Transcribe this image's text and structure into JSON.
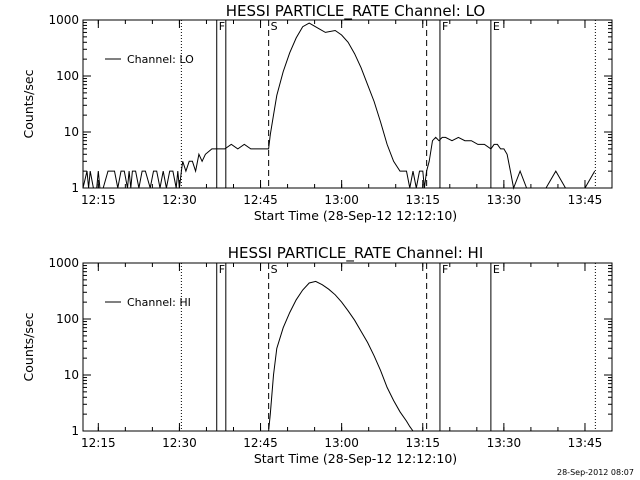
{
  "chart_data": [
    {
      "type": "line",
      "title": "HESSI PARTICLE_RATE Channel: LO",
      "xlabel": "Start Time (28-Sep-12 12:12:10)",
      "ylabel": "Counts/sec",
      "yscale": "log",
      "xlim": [
        12.2028,
        13.8333
      ],
      "ylim": [
        1,
        1000
      ],
      "x_ticks": [
        "12:15",
        "12:30",
        "12:45",
        "13:00",
        "13:15",
        "13:30",
        "13:45"
      ],
      "x_tick_values": [
        12.25,
        12.5,
        12.75,
        13.0,
        13.25,
        13.5,
        13.75
      ],
      "y_ticks": [
        "1",
        "10",
        "100",
        "1000"
      ],
      "y_tick_values": [
        1,
        10,
        100,
        1000
      ],
      "legend": {
        "label": "Channel: LO",
        "position": "top-left"
      },
      "markers": [
        {
          "label": "F",
          "x": 12.615,
          "style": "solid"
        },
        {
          "label": "",
          "x": 12.643,
          "style": "solid"
        },
        {
          "label": "S",
          "x": 12.775,
          "style": "dashed"
        },
        {
          "label": "",
          "x": 13.262,
          "style": "dashed"
        },
        {
          "label": "F",
          "x": 13.303,
          "style": "solid"
        },
        {
          "label": "E",
          "x": 13.46,
          "style": "solid"
        },
        {
          "label": "",
          "x": 12.506,
          "style": "dotted"
        },
        {
          "label": "",
          "x": 13.782,
          "style": "dotted"
        }
      ],
      "series": [
        {
          "name": "Channel: LO",
          "x": [
            12.2028,
            12.215,
            12.22,
            12.225,
            12.235,
            12.245,
            12.25,
            12.255,
            12.265,
            12.28,
            12.3,
            12.31,
            12.32,
            12.33,
            12.34,
            12.345,
            12.35,
            12.355,
            12.365,
            12.375,
            12.385,
            12.395,
            12.41,
            12.42,
            12.43,
            12.44,
            12.45,
            12.46,
            12.47,
            12.48,
            12.49,
            12.495,
            12.5,
            12.506,
            12.51,
            12.52,
            12.53,
            12.54,
            12.55,
            12.56,
            12.57,
            12.58,
            12.6,
            12.62,
            12.64,
            12.66,
            12.68,
            12.7,
            12.72,
            12.74,
            12.76,
            12.775,
            12.78,
            12.79,
            12.8,
            12.82,
            12.84,
            12.86,
            12.88,
            12.9,
            12.93,
            12.95,
            12.98,
            13.0,
            13.02,
            13.04,
            13.06,
            13.08,
            13.1,
            13.12,
            13.14,
            13.16,
            13.18,
            13.2,
            13.21,
            13.22,
            13.23,
            13.24,
            13.25,
            13.255,
            13.262,
            13.27,
            13.28,
            13.29,
            13.3,
            13.31,
            13.32,
            13.34,
            13.36,
            13.38,
            13.4,
            13.42,
            13.44,
            13.46,
            13.47,
            13.48,
            13.49,
            13.5,
            13.51,
            13.52,
            13.53,
            13.55,
            13.57,
            13.6,
            13.63,
            13.66,
            13.69,
            13.7,
            13.72,
            13.75,
            13.78
          ],
          "y": [
            1,
            2,
            1,
            2,
            1,
            1,
            2,
            1,
            1,
            2,
            2,
            1,
            2,
            2,
            1,
            2,
            1,
            2,
            2,
            1,
            2,
            2,
            1,
            2,
            2,
            1,
            2,
            1,
            2,
            2,
            1,
            2,
            1,
            2,
            3,
            2,
            3,
            3,
            2,
            4,
            3,
            4,
            5,
            5,
            5,
            6,
            5,
            6,
            5,
            5,
            5,
            5,
            9,
            20,
            45,
            120,
            260,
            480,
            760,
            880,
            700,
            600,
            650,
            540,
            400,
            250,
            140,
            70,
            35,
            15,
            6,
            3,
            2,
            2,
            1,
            2,
            1,
            2,
            2,
            1,
            2,
            3,
            7,
            8,
            7,
            8,
            8,
            7,
            8,
            7,
            7,
            6,
            6,
            5,
            6,
            6,
            5,
            5,
            4,
            2,
            1,
            2,
            1,
            1,
            1,
            2,
            1,
            1,
            1,
            1,
            2
          ]
        }
      ]
    },
    {
      "type": "line",
      "title": "HESSI PARTICLE_RATE Channel: HI",
      "xlabel": "Start Time (28-Sep-12 12:12:10)",
      "ylabel": "Counts/sec",
      "yscale": "log",
      "xlim": [
        12.2028,
        13.8333
      ],
      "ylim": [
        1,
        1000
      ],
      "x_ticks": [
        "12:15",
        "12:30",
        "12:45",
        "13:00",
        "13:15",
        "13:30",
        "13:45"
      ],
      "x_tick_values": [
        12.25,
        12.5,
        12.75,
        13.0,
        13.25,
        13.5,
        13.75
      ],
      "y_ticks": [
        "1",
        "10",
        "100",
        "1000"
      ],
      "y_tick_values": [
        1,
        10,
        100,
        1000
      ],
      "legend": {
        "label": "Channel: HI",
        "position": "top-left"
      },
      "markers": [
        {
          "label": "F",
          "x": 12.615,
          "style": "solid"
        },
        {
          "label": "",
          "x": 12.643,
          "style": "solid"
        },
        {
          "label": "S",
          "x": 12.775,
          "style": "dashed"
        },
        {
          "label": "",
          "x": 13.262,
          "style": "dashed"
        },
        {
          "label": "F",
          "x": 13.303,
          "style": "solid"
        },
        {
          "label": "E",
          "x": 13.46,
          "style": "solid"
        },
        {
          "label": "",
          "x": 12.506,
          "style": "dotted"
        },
        {
          "label": "",
          "x": 13.782,
          "style": "dotted"
        }
      ],
      "series": [
        {
          "name": "Channel: HI",
          "x": [
            12.775,
            12.78,
            12.79,
            12.8,
            12.82,
            12.84,
            12.86,
            12.88,
            12.9,
            12.92,
            12.94,
            12.96,
            12.98,
            13.0,
            13.02,
            13.04,
            13.06,
            13.08,
            13.1,
            13.12,
            13.14,
            13.16,
            13.18,
            13.2,
            13.21,
            13.22
          ],
          "y": [
            1,
            2,
            10,
            30,
            70,
            130,
            220,
            330,
            440,
            470,
            410,
            340,
            270,
            200,
            140,
            95,
            60,
            38,
            22,
            12,
            6,
            3.5,
            2.2,
            1.5,
            1.2,
            1
          ]
        }
      ]
    }
  ],
  "timestamp": "28-Sep-2012 08:07"
}
